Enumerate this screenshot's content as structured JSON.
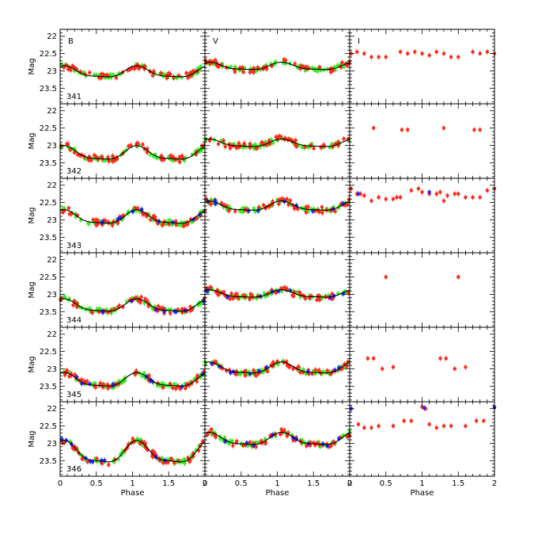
{
  "chart_data": {
    "type": "scatter",
    "xlabel": "Phase",
    "ylabel": "Mag",
    "xlim": [
      0,
      2
    ],
    "ylim": [
      23.95,
      21.8
    ],
    "y_inverted": true,
    "x_ticks": [
      "0",
      "0.5",
      "1",
      "1.5",
      "2"
    ],
    "y_ticks": [
      "22",
      "22.5",
      "23",
      "23.5"
    ],
    "bands": [
      "B",
      "V",
      "I"
    ],
    "stars": [
      "341",
      "342",
      "343",
      "344",
      "345",
      "346"
    ],
    "grid": false,
    "legend": "none",
    "colors": {
      "primary": "#ff2a1a",
      "secondary": "#33ee22",
      "tertiary": "#2222ff",
      "fit": "#000000"
    },
    "curves": {
      "341": {
        "B": {
          "mean": 23.05,
          "amp": 0.18
        },
        "V": {
          "mean": 22.88,
          "amp": 0.12
        },
        "I": {
          "mean": 22.45,
          "amp": 0.05
        }
      },
      "342": {
        "B": {
          "mean": 23.25,
          "amp": 0.22
        },
        "V": {
          "mean": 22.95,
          "amp": 0.12
        },
        "I": {
          "mean": 22.5,
          "amp": 0.05
        }
      },
      "343": {
        "B": {
          "mean": 22.95,
          "amp": 0.22
        },
        "V": {
          "mean": 22.62,
          "amp": 0.15
        },
        "I": {
          "mean": 22.3,
          "amp": 0.12
        }
      },
      "344": {
        "B": {
          "mean": 23.35,
          "amp": 0.2
        },
        "V": {
          "mean": 23.0,
          "amp": 0.12
        },
        "I": {
          "mean": 22.5,
          "amp": 0.05
        }
      },
      "345": {
        "B": {
          "mean": 23.35,
          "amp": 0.22
        },
        "V": {
          "mean": 23.0,
          "amp": 0.18
        },
        "I": {
          "mean": 22.6,
          "amp": 0.1
        }
      },
      "346": {
        "B": {
          "mean": 23.3,
          "amp": 0.35
        },
        "V": {
          "mean": 22.9,
          "amp": 0.2
        },
        "I": {
          "mean": 22.4,
          "amp": 0.3
        }
      }
    },
    "i_points": {
      "341": [
        [
          0.02,
          22.5
        ],
        [
          0.1,
          22.45
        ],
        [
          0.2,
          22.5
        ],
        [
          0.3,
          22.6
        ],
        [
          0.4,
          22.6
        ],
        [
          0.5,
          22.6
        ],
        [
          0.7,
          22.45
        ],
        [
          0.8,
          22.5
        ],
        [
          0.9,
          22.45
        ],
        [
          1.0,
          22.5
        ],
        [
          1.1,
          22.55
        ],
        [
          1.2,
          22.45
        ],
        [
          1.3,
          22.5
        ],
        [
          1.4,
          22.6
        ],
        [
          1.5,
          22.6
        ],
        [
          1.7,
          22.45
        ],
        [
          1.8,
          22.5
        ],
        [
          1.9,
          22.45
        ],
        [
          2.0,
          22.5
        ]
      ],
      "342": [
        [
          0.33,
          22.5
        ],
        [
          0.72,
          22.55
        ],
        [
          0.8,
          22.55
        ],
        [
          1.3,
          22.5
        ],
        [
          1.72,
          22.55
        ],
        [
          1.8,
          22.55
        ]
      ],
      "343": [
        [
          0.02,
          22.1
        ],
        [
          0.1,
          22.25
        ],
        [
          0.15,
          22.25
        ],
        [
          0.2,
          22.3
        ],
        [
          0.3,
          22.45
        ],
        [
          0.4,
          22.35
        ],
        [
          0.5,
          22.4
        ],
        [
          0.6,
          22.4
        ],
        [
          0.65,
          22.35
        ],
        [
          0.7,
          22.35
        ],
        [
          0.85,
          22.15
        ],
        [
          0.95,
          22.1
        ],
        [
          1.0,
          22.2
        ],
        [
          1.1,
          22.25
        ],
        [
          1.2,
          22.25
        ],
        [
          1.25,
          22.2
        ],
        [
          1.3,
          22.45
        ],
        [
          1.35,
          22.3
        ],
        [
          1.45,
          22.25
        ],
        [
          1.5,
          22.25
        ],
        [
          1.6,
          22.35
        ],
        [
          1.7,
          22.35
        ],
        [
          1.8,
          22.35
        ],
        [
          1.9,
          22.15
        ],
        [
          2.0,
          22.1
        ]
      ],
      "344": [
        [
          0.5,
          22.5
        ],
        [
          1.5,
          22.5
        ]
      ],
      "345": [
        [
          0.25,
          22.7
        ],
        [
          0.33,
          22.7
        ],
        [
          0.45,
          23.0
        ],
        [
          0.6,
          22.95
        ],
        [
          1.25,
          22.7
        ],
        [
          1.33,
          22.7
        ],
        [
          1.45,
          23.0
        ],
        [
          1.6,
          22.95
        ]
      ],
      "346": [
        [
          0.02,
          22.0
        ],
        [
          0.12,
          22.45
        ],
        [
          0.2,
          22.55
        ],
        [
          0.3,
          22.55
        ],
        [
          0.4,
          22.5
        ],
        [
          0.6,
          22.5
        ],
        [
          0.75,
          22.35
        ],
        [
          0.85,
          22.35
        ],
        [
          1.0,
          21.95
        ],
        [
          1.05,
          22.0
        ],
        [
          1.1,
          22.45
        ],
        [
          1.2,
          22.55
        ],
        [
          1.3,
          22.5
        ],
        [
          1.4,
          22.5
        ],
        [
          1.6,
          22.5
        ],
        [
          1.75,
          22.35
        ],
        [
          1.85,
          22.35
        ],
        [
          2.0,
          21.95
        ]
      ]
    }
  }
}
